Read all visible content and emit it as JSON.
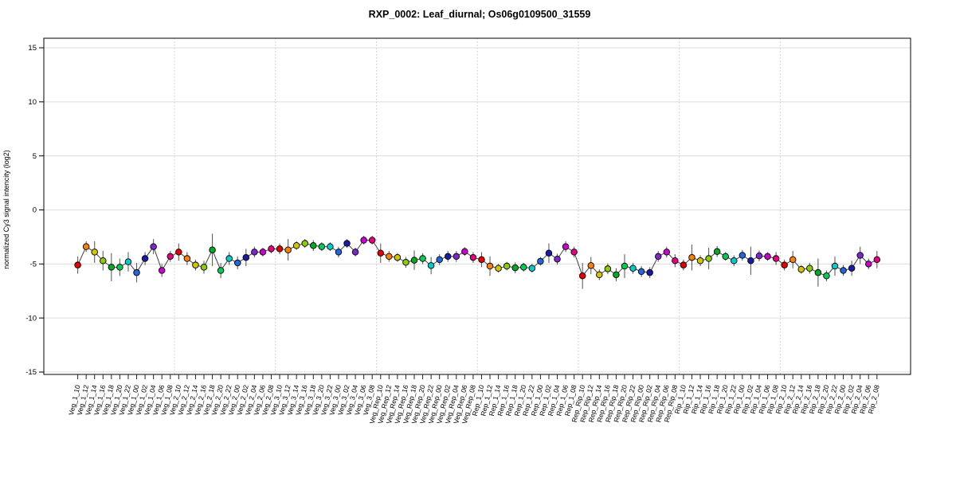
{
  "chart_data": {
    "type": "line",
    "title": "RXP_0002: Leaf_diurnal; Os06g0109500_31559",
    "xlabel": "",
    "ylabel": "normalized Cy3 signal intencity (log2)",
    "ylim": [
      -15.2,
      15.9
    ],
    "yticks": [
      15,
      10,
      5,
      0,
      -5,
      -10,
      -15
    ],
    "grid": true,
    "legend_position": "none",
    "groups": [
      "Veg_1",
      "Veg_2",
      "Veg_3",
      "Veg_Rep",
      "Rep_1",
      "Rep_Rip",
      "Rip_1",
      "Rip_2"
    ],
    "group_size": 12,
    "time_order": [
      "10",
      "12",
      "14",
      "16",
      "18",
      "20",
      "22",
      "00",
      "02",
      "04",
      "06",
      "08"
    ],
    "point_colors_by_time": {
      "10": "#e60000",
      "12": "#ff7f00",
      "14": "#d4c400",
      "16": "#8ccc00",
      "18": "#00aa22",
      "20": "#00cc55",
      "22": "#00cccc",
      "00": "#2266dd",
      "02": "#1a1aaa",
      "04": "#7d26cd",
      "06": "#cc00cc",
      "08": "#e60080"
    },
    "categories": [
      "Veg_1_10",
      "Veg_1_12",
      "Veg_1_14",
      "Veg_1_16",
      "Veg_1_18",
      "Veg_1_20",
      "Veg_1_22",
      "Veg_1_00",
      "Veg_1_02",
      "Veg_1_04",
      "Veg_1_06",
      "Veg_1_08",
      "Veg_2_10",
      "Veg_2_12",
      "Veg_2_14",
      "Veg_2_16",
      "Veg_2_18",
      "Veg_2_20",
      "Veg_2_22",
      "Veg_2_00",
      "Veg_2_02",
      "Veg_2_04",
      "Veg_2_06",
      "Veg_2_08",
      "Veg_3_10",
      "Veg_3_12",
      "Veg_3_14",
      "Veg_3_16",
      "Veg_3_18",
      "Veg_3_20",
      "Veg_3_22",
      "Veg_3_00",
      "Veg_3_02",
      "Veg_3_04",
      "Veg_3_06",
      "Veg_3_08",
      "Veg_Rep_10",
      "Veg_Rep_12",
      "Veg_Rep_14",
      "Veg_Rep_16",
      "Veg_Rep_18",
      "Veg_Rep_20",
      "Veg_Rep_22",
      "Veg_Rep_00",
      "Veg_Rep_02",
      "Veg_Rep_04",
      "Veg_Rep_06",
      "Veg_Rep_08",
      "Rep_1_10",
      "Rep_1_12",
      "Rep_1_14",
      "Rep_1_16",
      "Rep_1_18",
      "Rep_1_20",
      "Rep_1_22",
      "Rep_1_00",
      "Rep_1_02",
      "Rep_1_04",
      "Rep_1_06",
      "Rep_1_08",
      "Rep_Rip_10",
      "Rep_Rip_12",
      "Rep_Rip_14",
      "Rep_Rip_16",
      "Rep_Rip_18",
      "Rep_Rip_20",
      "Rep_Rip_22",
      "Rep_Rip_00",
      "Rep_Rip_02",
      "Rep_Rip_04",
      "Rep_Rip_06",
      "Rep_Rip_08",
      "Rip_1_10",
      "Rip_1_12",
      "Rip_1_14",
      "Rip_1_16",
      "Rip_1_18",
      "Rip_1_20",
      "Rip_1_22",
      "Rip_1_00",
      "Rip_1_02",
      "Rip_1_04",
      "Rip_1_06",
      "Rip_1_08",
      "Rip_2_10",
      "Rip_2_12",
      "Rip_2_14",
      "Rip_2_16",
      "Rip_2_18",
      "Rip_2_20",
      "Rip_2_22",
      "Rip_2_00",
      "Rip_2_02",
      "Rip_2_04",
      "Rip_2_06",
      "Rip_2_08"
    ],
    "values": [
      -5.1,
      -3.4,
      -3.9,
      -4.7,
      -5.3,
      -5.3,
      -4.8,
      -5.8,
      -4.5,
      -3.4,
      -5.6,
      -4.3,
      -3.9,
      -4.5,
      -5.1,
      -5.3,
      -3.7,
      -5.6,
      -4.5,
      -4.9,
      -4.4,
      -3.9,
      -3.9,
      -3.6,
      -3.6,
      -3.7,
      -3.3,
      -3.1,
      -3.3,
      -3.4,
      -3.4,
      -3.9,
      -3.1,
      -3.9,
      -2.8,
      -2.8,
      -4.0,
      -4.3,
      -4.4,
      -4.85,
      -4.65,
      -4.5,
      -5.15,
      -4.6,
      -4.3,
      -4.3,
      -3.85,
      -4.4,
      -4.6,
      -5.2,
      -5.4,
      -5.2,
      -5.35,
      -5.3,
      -5.4,
      -4.75,
      -4.0,
      -4.55,
      -3.4,
      -3.9,
      -6.1,
      -5.15,
      -6.0,
      -5.45,
      -6.0,
      -5.2,
      -5.4,
      -5.7,
      -5.8,
      -4.3,
      -3.9,
      -4.7,
      -5.1,
      -4.4,
      -4.7,
      -4.5,
      -3.85,
      -4.3,
      -4.7,
      -4.2,
      -4.7,
      -4.25,
      -4.3,
      -4.5,
      -5.1,
      -4.6,
      -5.5,
      -5.4,
      -5.8,
      -6.1,
      -5.2,
      -5.6,
      -5.4,
      -4.2,
      -5.0,
      -4.6
    ],
    "errors": [
      0.8,
      0.5,
      1.0,
      0.9,
      1.3,
      0.8,
      0.9,
      0.9,
      0.6,
      0.7,
      0.6,
      0.5,
      0.8,
      0.6,
      0.5,
      0.6,
      1.5,
      0.7,
      0.6,
      0.6,
      0.8,
      0.5,
      0.4,
      0.4,
      0.5,
      1.0,
      0.4,
      0.4,
      0.5,
      0.4,
      0.4,
      0.5,
      0.4,
      0.4,
      0.4,
      0.4,
      0.9,
      0.5,
      0.4,
      0.5,
      0.9,
      0.5,
      0.8,
      0.5,
      0.5,
      0.5,
      0.4,
      0.5,
      0.7,
      0.9,
      0.4,
      0.4,
      0.5,
      0.4,
      0.4,
      0.4,
      0.9,
      0.5,
      0.5,
      0.5,
      1.2,
      0.8,
      0.5,
      0.5,
      0.6,
      1.1,
      0.5,
      0.5,
      0.5,
      0.5,
      0.5,
      0.6,
      0.5,
      1.2,
      0.5,
      1.0,
      0.5,
      0.4,
      0.5,
      0.5,
      1.3,
      0.5,
      0.4,
      0.6,
      0.5,
      0.8,
      0.4,
      0.5,
      1.3,
      0.5,
      0.9,
      0.5,
      0.7,
      0.8,
      0.5,
      0.8
    ]
  }
}
